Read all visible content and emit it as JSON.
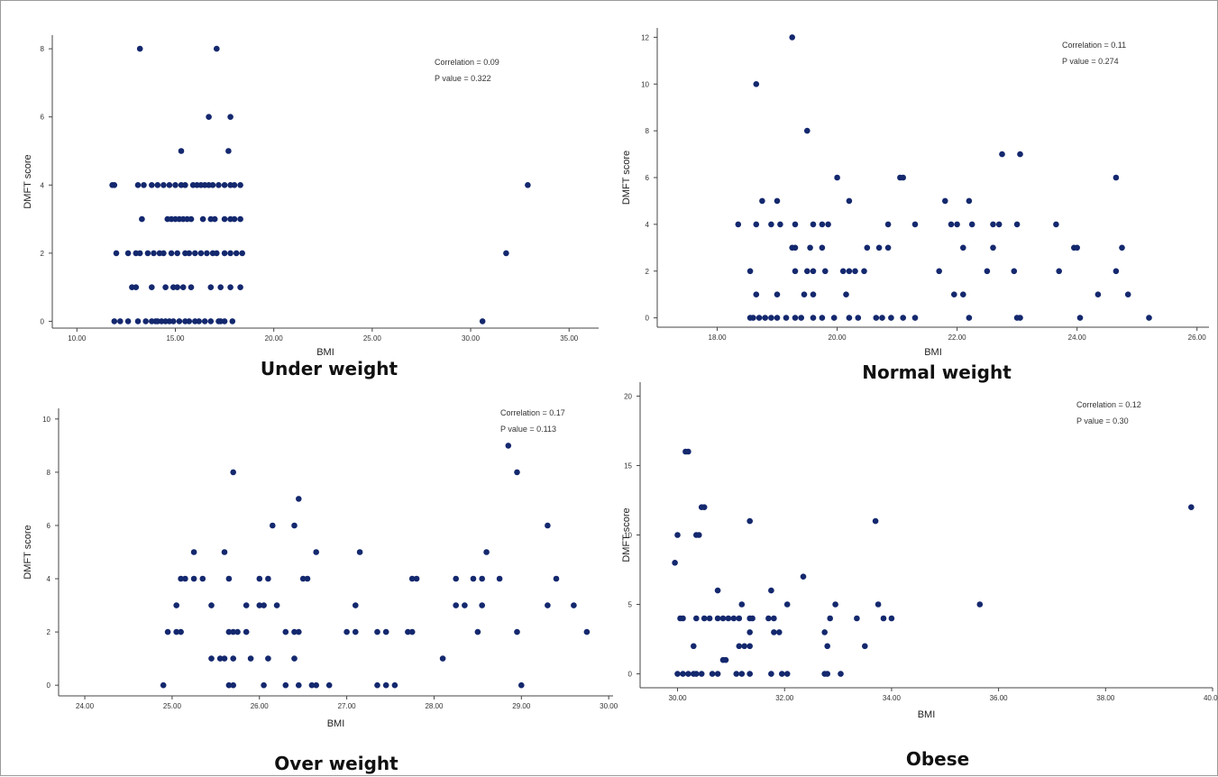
{
  "style": {
    "point_color": "#14286e",
    "axis_color": "#444444",
    "text_color": "#333333"
  },
  "chart_data": [
    {
      "type": "scatter",
      "caption": "Under weight",
      "xlabel": "BMI",
      "ylabel": "DMFT score",
      "xlim": [
        8.75,
        36.5
      ],
      "ylim": [
        -0.2,
        8.4
      ],
      "xticks": [
        "10.00",
        "15.00",
        "20.00",
        "25.00",
        "30.00",
        "35.00"
      ],
      "xtick_values": [
        10,
        15,
        20,
        25,
        30,
        35
      ],
      "yticks": [
        "0",
        "2",
        "4",
        "6",
        "8"
      ],
      "ytick_values": [
        0,
        2,
        4,
        6,
        8
      ],
      "annotations": [
        "Correlation = 0.09",
        "P value = 0.322"
      ],
      "points": [
        [
          13.2,
          8
        ],
        [
          17.1,
          8
        ],
        [
          16.7,
          6
        ],
        [
          17.8,
          6
        ],
        [
          15.3,
          5
        ],
        [
          17.7,
          5
        ],
        [
          11.8,
          4
        ],
        [
          11.9,
          4
        ],
        [
          13.1,
          4
        ],
        [
          13.4,
          4
        ],
        [
          13.8,
          4
        ],
        [
          14.1,
          4
        ],
        [
          14.4,
          4
        ],
        [
          14.7,
          4
        ],
        [
          15.0,
          4
        ],
        [
          15.3,
          4
        ],
        [
          15.5,
          4
        ],
        [
          15.9,
          4
        ],
        [
          16.1,
          4
        ],
        [
          16.3,
          4
        ],
        [
          16.5,
          4
        ],
        [
          16.7,
          4
        ],
        [
          16.9,
          4
        ],
        [
          17.2,
          4
        ],
        [
          17.5,
          4
        ],
        [
          17.8,
          4
        ],
        [
          18.0,
          4
        ],
        [
          18.3,
          4
        ],
        [
          32.9,
          4
        ],
        [
          13.3,
          3
        ],
        [
          14.6,
          3
        ],
        [
          14.8,
          3
        ],
        [
          15.0,
          3
        ],
        [
          15.2,
          3
        ],
        [
          15.4,
          3
        ],
        [
          15.6,
          3
        ],
        [
          15.8,
          3
        ],
        [
          16.4,
          3
        ],
        [
          16.8,
          3
        ],
        [
          17.0,
          3
        ],
        [
          17.5,
          3
        ],
        [
          17.8,
          3
        ],
        [
          18.0,
          3
        ],
        [
          18.3,
          3
        ],
        [
          12.0,
          2
        ],
        [
          12.6,
          2
        ],
        [
          13.0,
          2
        ],
        [
          13.2,
          2
        ],
        [
          13.6,
          2
        ],
        [
          13.9,
          2
        ],
        [
          14.2,
          2
        ],
        [
          14.4,
          2
        ],
        [
          14.8,
          2
        ],
        [
          15.1,
          2
        ],
        [
          15.5,
          2
        ],
        [
          15.7,
          2
        ],
        [
          16.0,
          2
        ],
        [
          16.3,
          2
        ],
        [
          16.6,
          2
        ],
        [
          16.9,
          2
        ],
        [
          17.1,
          2
        ],
        [
          17.5,
          2
        ],
        [
          17.8,
          2
        ],
        [
          18.1,
          2
        ],
        [
          18.4,
          2
        ],
        [
          31.8,
          2
        ],
        [
          12.8,
          1
        ],
        [
          13.0,
          1
        ],
        [
          13.8,
          1
        ],
        [
          14.5,
          1
        ],
        [
          14.9,
          1
        ],
        [
          15.1,
          1
        ],
        [
          15.4,
          1
        ],
        [
          15.8,
          1
        ],
        [
          16.8,
          1
        ],
        [
          17.3,
          1
        ],
        [
          17.8,
          1
        ],
        [
          18.3,
          1
        ],
        [
          11.9,
          0
        ],
        [
          12.2,
          0
        ],
        [
          12.6,
          0
        ],
        [
          13.1,
          0
        ],
        [
          13.5,
          0
        ],
        [
          13.8,
          0
        ],
        [
          14.0,
          0
        ],
        [
          14.1,
          0
        ],
        [
          14.3,
          0
        ],
        [
          14.5,
          0
        ],
        [
          14.7,
          0
        ],
        [
          14.9,
          0
        ],
        [
          15.2,
          0
        ],
        [
          15.5,
          0
        ],
        [
          15.7,
          0
        ],
        [
          16.0,
          0
        ],
        [
          16.2,
          0
        ],
        [
          16.5,
          0
        ],
        [
          16.8,
          0
        ],
        [
          17.2,
          0
        ],
        [
          17.3,
          0
        ],
        [
          17.5,
          0
        ],
        [
          17.9,
          0
        ],
        [
          30.6,
          0
        ]
      ]
    },
    {
      "type": "scatter",
      "caption": "Normal weight",
      "xlabel": "BMI",
      "ylabel": "DMFT score",
      "xlim": [
        17.0,
        26.2
      ],
      "ylim": [
        -0.4,
        12.4
      ],
      "xticks": [
        "18.00",
        "20.00",
        "22.00",
        "24.00",
        "26.00"
      ],
      "xtick_values": [
        18,
        20,
        22,
        24,
        26
      ],
      "yticks": [
        "0",
        "2",
        "4",
        "6",
        "8",
        "10",
        "12"
      ],
      "ytick_values": [
        0,
        2,
        4,
        6,
        8,
        10,
        12
      ],
      "annotations": [
        "Correlation = 0.11",
        "P value = 0.274"
      ],
      "points": [
        [
          19.25,
          12
        ],
        [
          18.65,
          10
        ],
        [
          19.5,
          8
        ],
        [
          20.0,
          6
        ],
        [
          21.05,
          6
        ],
        [
          21.1,
          6
        ],
        [
          22.75,
          7
        ],
        [
          23.05,
          7
        ],
        [
          24.65,
          6
        ],
        [
          18.75,
          5
        ],
        [
          19.0,
          5
        ],
        [
          20.2,
          5
        ],
        [
          21.8,
          5
        ],
        [
          22.2,
          5
        ],
        [
          18.35,
          4
        ],
        [
          18.65,
          4
        ],
        [
          18.9,
          4
        ],
        [
          19.05,
          4
        ],
        [
          19.3,
          4
        ],
        [
          19.6,
          4
        ],
        [
          19.75,
          4
        ],
        [
          19.85,
          4
        ],
        [
          20.85,
          4
        ],
        [
          21.3,
          4
        ],
        [
          21.9,
          4
        ],
        [
          22.0,
          4
        ],
        [
          22.25,
          4
        ],
        [
          22.6,
          4
        ],
        [
          22.7,
          4
        ],
        [
          23.0,
          4
        ],
        [
          23.65,
          4
        ],
        [
          19.25,
          3
        ],
        [
          19.3,
          3
        ],
        [
          19.55,
          3
        ],
        [
          19.75,
          3
        ],
        [
          20.5,
          3
        ],
        [
          20.7,
          3
        ],
        [
          20.85,
          3
        ],
        [
          22.1,
          3
        ],
        [
          22.6,
          3
        ],
        [
          23.95,
          3
        ],
        [
          24.0,
          3
        ],
        [
          24.75,
          3
        ],
        [
          18.55,
          2
        ],
        [
          19.3,
          2
        ],
        [
          19.5,
          2
        ],
        [
          19.6,
          2
        ],
        [
          19.8,
          2
        ],
        [
          20.1,
          2
        ],
        [
          20.2,
          2
        ],
        [
          20.3,
          2
        ],
        [
          20.45,
          2
        ],
        [
          21.7,
          2
        ],
        [
          22.5,
          2
        ],
        [
          22.95,
          2
        ],
        [
          23.7,
          2
        ],
        [
          24.65,
          2
        ],
        [
          18.65,
          1
        ],
        [
          19.0,
          1
        ],
        [
          19.45,
          1
        ],
        [
          19.6,
          1
        ],
        [
          20.15,
          1
        ],
        [
          21.95,
          1
        ],
        [
          22.1,
          1
        ],
        [
          24.35,
          1
        ],
        [
          24.85,
          1
        ],
        [
          18.55,
          0
        ],
        [
          18.6,
          0
        ],
        [
          18.7,
          0
        ],
        [
          18.8,
          0
        ],
        [
          18.9,
          0
        ],
        [
          19.0,
          0
        ],
        [
          19.15,
          0
        ],
        [
          19.3,
          0
        ],
        [
          19.4,
          0
        ],
        [
          19.6,
          0
        ],
        [
          19.75,
          0
        ],
        [
          19.95,
          0
        ],
        [
          20.2,
          0
        ],
        [
          20.35,
          0
        ],
        [
          20.65,
          0
        ],
        [
          20.75,
          0
        ],
        [
          20.9,
          0
        ],
        [
          21.1,
          0
        ],
        [
          21.3,
          0
        ],
        [
          22.2,
          0
        ],
        [
          23.0,
          0
        ],
        [
          23.05,
          0
        ],
        [
          24.05,
          0
        ],
        [
          25.2,
          0
        ]
      ]
    },
    {
      "type": "scatter",
      "caption": "Over weight",
      "xlabel": "BMI",
      "ylabel": "DMFT score",
      "xlim": [
        23.7,
        30.05
      ],
      "ylim": [
        -0.4,
        10.4
      ],
      "xticks": [
        "24.00",
        "25.00",
        "26.00",
        "27.00",
        "28.00",
        "29.00",
        "30.00"
      ],
      "xtick_values": [
        24,
        25,
        26,
        27,
        28,
        29,
        30
      ],
      "yticks": [
        "0",
        "2",
        "4",
        "6",
        "8",
        "10"
      ],
      "ytick_values": [
        0,
        2,
        4,
        6,
        8,
        10
      ],
      "annotations": [
        "Correlation = 0.17",
        "P value = 0.113"
      ],
      "points": [
        [
          28.85,
          9
        ],
        [
          25.7,
          8
        ],
        [
          28.95,
          8
        ],
        [
          26.45,
          7
        ],
        [
          26.15,
          6
        ],
        [
          26.4,
          6
        ],
        [
          29.3,
          6
        ],
        [
          25.25,
          5
        ],
        [
          25.6,
          5
        ],
        [
          26.65,
          5
        ],
        [
          27.15,
          5
        ],
        [
          28.6,
          5
        ],
        [
          25.1,
          4
        ],
        [
          25.15,
          4
        ],
        [
          25.25,
          4
        ],
        [
          25.35,
          4
        ],
        [
          25.65,
          4
        ],
        [
          26.0,
          4
        ],
        [
          26.1,
          4
        ],
        [
          26.5,
          4
        ],
        [
          26.55,
          4
        ],
        [
          27.75,
          4
        ],
        [
          27.8,
          4
        ],
        [
          28.25,
          4
        ],
        [
          28.45,
          4
        ],
        [
          28.55,
          4
        ],
        [
          28.75,
          4
        ],
        [
          29.4,
          4
        ],
        [
          25.05,
          3
        ],
        [
          25.45,
          3
        ],
        [
          25.85,
          3
        ],
        [
          26.0,
          3
        ],
        [
          26.05,
          3
        ],
        [
          26.2,
          3
        ],
        [
          27.1,
          3
        ],
        [
          28.25,
          3
        ],
        [
          28.35,
          3
        ],
        [
          28.55,
          3
        ],
        [
          29.3,
          3
        ],
        [
          29.6,
          3
        ],
        [
          24.95,
          2
        ],
        [
          25.05,
          2
        ],
        [
          25.1,
          2
        ],
        [
          25.65,
          2
        ],
        [
          25.7,
          2
        ],
        [
          25.75,
          2
        ],
        [
          25.85,
          2
        ],
        [
          26.3,
          2
        ],
        [
          26.4,
          2
        ],
        [
          26.45,
          2
        ],
        [
          27.0,
          2
        ],
        [
          27.1,
          2
        ],
        [
          27.35,
          2
        ],
        [
          27.45,
          2
        ],
        [
          27.7,
          2
        ],
        [
          27.75,
          2
        ],
        [
          28.5,
          2
        ],
        [
          28.95,
          2
        ],
        [
          29.75,
          2
        ],
        [
          25.45,
          1
        ],
        [
          25.55,
          1
        ],
        [
          25.6,
          1
        ],
        [
          25.7,
          1
        ],
        [
          25.9,
          1
        ],
        [
          26.1,
          1
        ],
        [
          26.4,
          1
        ],
        [
          28.1,
          1
        ],
        [
          24.9,
          0
        ],
        [
          25.65,
          0
        ],
        [
          25.7,
          0
        ],
        [
          26.05,
          0
        ],
        [
          26.3,
          0
        ],
        [
          26.45,
          0
        ],
        [
          26.6,
          0
        ],
        [
          26.65,
          0
        ],
        [
          26.8,
          0
        ],
        [
          27.35,
          0
        ],
        [
          27.45,
          0
        ],
        [
          27.55,
          0
        ],
        [
          29.0,
          0
        ]
      ]
    },
    {
      "type": "scatter",
      "caption": "Obese",
      "xlabel": "BMI",
      "ylabel": "DMFT score",
      "xlim": [
        29.3,
        40.0
      ],
      "ylim": [
        -1,
        21
      ],
      "xticks": [
        "30.00",
        "32.00",
        "34.00",
        "36.00",
        "38.00",
        "40.00"
      ],
      "xtick_values": [
        30,
        32,
        34,
        36,
        38,
        40
      ],
      "yticks": [
        "0",
        "5",
        "10",
        "15",
        "20"
      ],
      "ytick_values": [
        0,
        5,
        10,
        15,
        20
      ],
      "annotations": [
        "Correlation = 0.12",
        "P value = 0.30"
      ],
      "points": [
        [
          30.15,
          16
        ],
        [
          30.2,
          16
        ],
        [
          30.45,
          12
        ],
        [
          30.5,
          12
        ],
        [
          39.6,
          12
        ],
        [
          30.0,
          10
        ],
        [
          30.35,
          10
        ],
        [
          30.4,
          10
        ],
        [
          31.35,
          11
        ],
        [
          33.7,
          11
        ],
        [
          29.95,
          8
        ],
        [
          32.35,
          7
        ],
        [
          30.75,
          6
        ],
        [
          31.75,
          6
        ],
        [
          32.05,
          5
        ],
        [
          32.95,
          5
        ],
        [
          33.75,
          5
        ],
        [
          35.65,
          5
        ],
        [
          31.2,
          5
        ],
        [
          30.05,
          4
        ],
        [
          30.1,
          4
        ],
        [
          30.35,
          4
        ],
        [
          30.5,
          4
        ],
        [
          30.6,
          4
        ],
        [
          30.75,
          4
        ],
        [
          30.85,
          4
        ],
        [
          30.95,
          4
        ],
        [
          31.05,
          4
        ],
        [
          31.15,
          4
        ],
        [
          31.35,
          4
        ],
        [
          31.4,
          4
        ],
        [
          31.7,
          4
        ],
        [
          31.8,
          4
        ],
        [
          32.85,
          4
        ],
        [
          33.35,
          4
        ],
        [
          33.85,
          4
        ],
        [
          34.0,
          4
        ],
        [
          31.35,
          3
        ],
        [
          31.8,
          3
        ],
        [
          31.9,
          3
        ],
        [
          32.75,
          3
        ],
        [
          30.3,
          2
        ],
        [
          31.15,
          2
        ],
        [
          31.25,
          2
        ],
        [
          31.35,
          2
        ],
        [
          32.8,
          2
        ],
        [
          33.5,
          2
        ],
        [
          30.85,
          1
        ],
        [
          30.9,
          1
        ],
        [
          30.0,
          0
        ],
        [
          30.1,
          0
        ],
        [
          30.2,
          0
        ],
        [
          30.3,
          0
        ],
        [
          30.35,
          0
        ],
        [
          30.45,
          0
        ],
        [
          30.65,
          0
        ],
        [
          30.75,
          0
        ],
        [
          31.1,
          0
        ],
        [
          31.2,
          0
        ],
        [
          31.35,
          0
        ],
        [
          31.75,
          0
        ],
        [
          31.95,
          0
        ],
        [
          32.05,
          0
        ],
        [
          32.75,
          0
        ],
        [
          32.8,
          0
        ],
        [
          33.05,
          0
        ]
      ]
    }
  ]
}
